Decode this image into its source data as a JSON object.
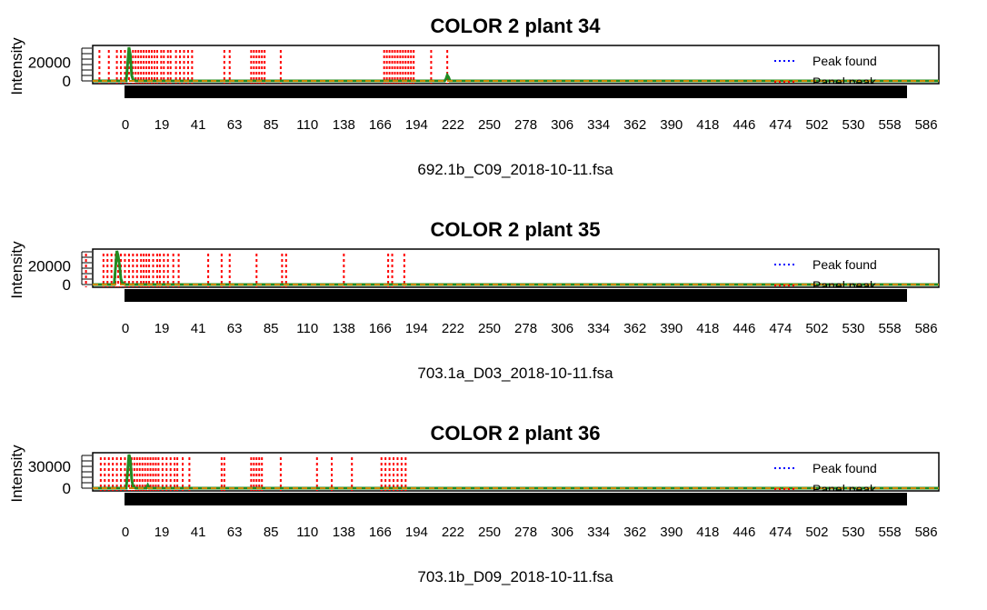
{
  "chart_data": [
    {
      "type": "line",
      "title": "COLOR 2 plant 34",
      "xlabel": "692.1b_C09_2018-10-11.fsa",
      "ylabel": "Intensity",
      "ylim": [
        0,
        35000
      ],
      "yticks": [
        0,
        20000
      ],
      "ytick_labels": [
        "0",
        "20000"
      ],
      "xlim": [
        -10,
        620
      ],
      "x_tick_labels": [
        "0",
        "19",
        "41",
        "63",
        "85",
        "110",
        "138",
        "166",
        "194",
        "222",
        "250",
        "278",
        "306",
        "334",
        "362",
        "390",
        "418",
        "446",
        "474",
        "502",
        "530",
        "558",
        "586"
      ],
      "legend": {
        "position": "top-right",
        "entries": [
          {
            "label": "Peak found",
            "color": "#0000ff",
            "style": "dotted"
          },
          {
            "label": "Panel peak",
            "color": "#ff0000",
            "style": "dotted"
          }
        ]
      },
      "panel_peaks_x": [
        -5,
        2,
        8,
        11,
        14,
        17,
        20,
        22,
        24,
        26,
        28,
        30,
        32,
        34,
        36,
        38,
        41,
        43,
        46,
        48,
        52,
        55,
        58,
        61,
        64,
        88,
        92,
        108,
        110,
        112,
        114,
        116,
        118,
        130,
        207,
        209,
        211,
        213,
        215,
        217,
        219,
        221,
        223,
        225,
        227,
        229,
        242,
        254
      ],
      "signal": {
        "color": "#228b22",
        "x": [
          -10,
          15,
          17,
          18,
          19,
          20,
          22,
          40,
          110,
          252,
          253,
          254,
          255,
          256,
          620
        ],
        "values": [
          0,
          0,
          36000,
          28000,
          6000,
          1500,
          0,
          0,
          0,
          0,
          2000,
          6000,
          4000,
          0,
          0
        ]
      }
    },
    {
      "type": "line",
      "title": "COLOR 2 plant 35",
      "xlabel": "703.1a_D03_2018-10-11.fsa",
      "ylabel": "Intensity",
      "ylim": [
        0,
        35000
      ],
      "yticks": [
        0,
        20000
      ],
      "ytick_labels": [
        "0",
        "20000"
      ],
      "xlim": [
        -10,
        620
      ],
      "x_tick_labels": [
        "0",
        "19",
        "41",
        "63",
        "85",
        "110",
        "138",
        "166",
        "194",
        "222",
        "250",
        "278",
        "306",
        "334",
        "362",
        "390",
        "418",
        "446",
        "474",
        "502",
        "530",
        "558",
        "586"
      ],
      "legend": {
        "position": "top-right",
        "entries": [
          {
            "label": "Peak found",
            "color": "#0000ff",
            "style": "dotted"
          },
          {
            "label": "Panel peak",
            "color": "#ff0000",
            "style": "dotted"
          }
        ]
      },
      "panel_peaks_x": [
        -15,
        -2,
        1,
        4,
        7,
        9,
        11,
        14,
        17,
        20,
        23,
        26,
        28,
        30,
        32,
        35,
        38,
        40,
        43,
        46,
        50,
        54,
        76,
        86,
        92,
        112,
        131,
        134,
        177,
        210,
        213,
        222
      ],
      "signal": {
        "color": "#228b22",
        "x": [
          -10,
          6,
          8,
          9,
          10,
          11,
          12,
          14,
          35,
          45,
          620
        ],
        "values": [
          0,
          0,
          36000,
          30000,
          20000,
          6000,
          2000,
          0,
          0,
          0,
          0
        ]
      }
    },
    {
      "type": "line",
      "title": "COLOR 2 plant 36",
      "xlabel": "703.1b_D09_2018-10-11.fsa",
      "ylabel": "Intensity",
      "ylim": [
        0,
        45000
      ],
      "yticks": [
        0,
        30000
      ],
      "ytick_labels": [
        "0",
        "30000"
      ],
      "xlim": [
        -10,
        620
      ],
      "x_tick_labels": [
        "0",
        "19",
        "41",
        "63",
        "85",
        "110",
        "138",
        "166",
        "194",
        "222",
        "250",
        "278",
        "306",
        "334",
        "362",
        "390",
        "418",
        "446",
        "474",
        "502",
        "530",
        "558",
        "586"
      ],
      "legend": {
        "position": "top-right",
        "entries": [
          {
            "label": "Peak found",
            "color": "#0000ff",
            "style": "dotted"
          },
          {
            "label": "Panel peak",
            "color": "#ff0000",
            "style": "dotted"
          }
        ]
      },
      "panel_peaks_x": [
        -4,
        -1,
        2,
        5,
        8,
        11,
        14,
        17,
        19,
        21,
        23,
        25,
        27,
        29,
        31,
        33,
        35,
        37,
        39,
        42,
        45,
        48,
        51,
        53,
        57,
        62,
        86,
        88,
        108,
        110,
        112,
        114,
        116,
        130,
        157,
        168,
        183,
        205,
        208,
        211,
        214,
        217,
        220,
        223
      ],
      "signal": {
        "color": "#228b22",
        "x": [
          -10,
          15,
          17,
          18,
          19,
          20,
          22,
          30,
          31,
          32,
          38,
          620
        ],
        "values": [
          0,
          0,
          48000,
          40000,
          12000,
          3000,
          0,
          0,
          4000,
          0,
          0,
          0
        ]
      }
    }
  ]
}
